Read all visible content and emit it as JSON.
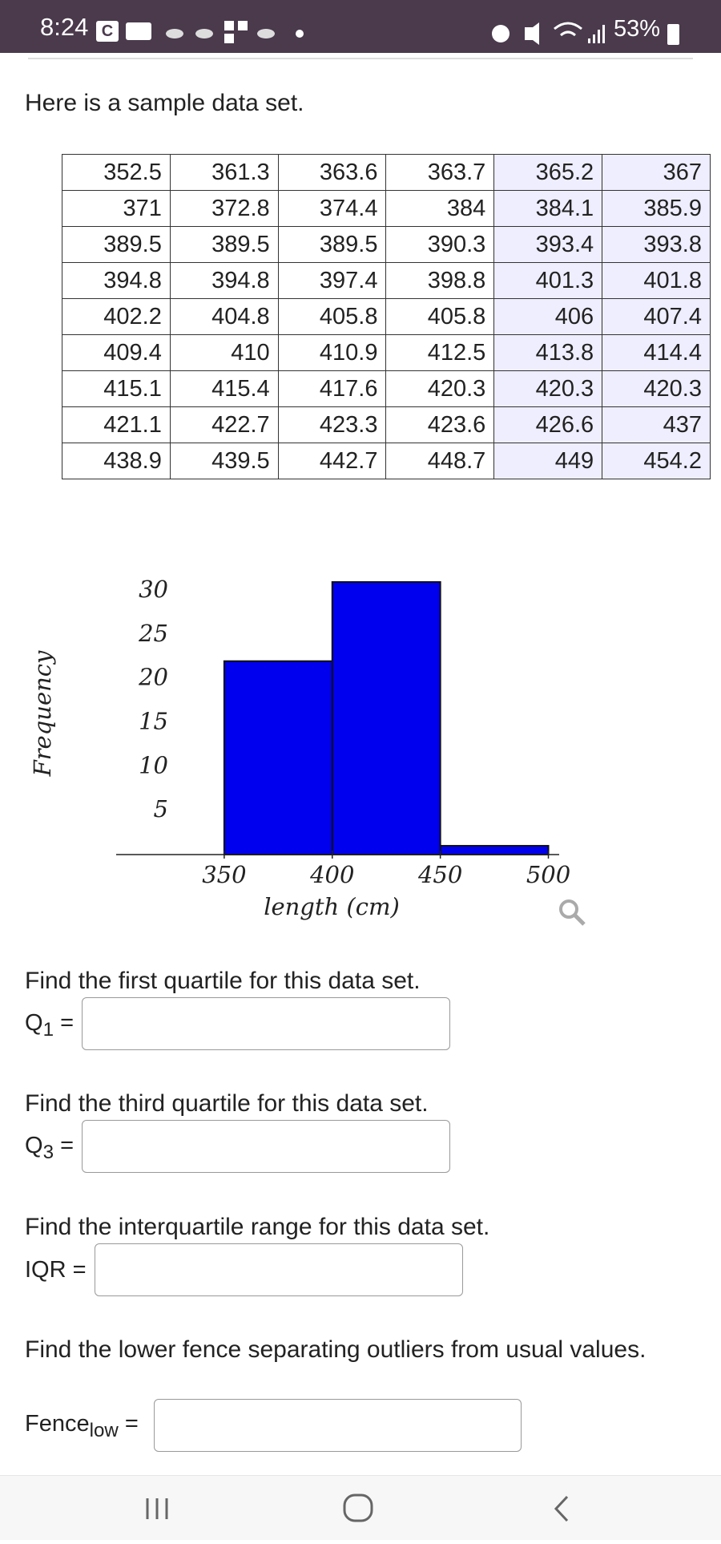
{
  "status_bar": {
    "time": "8:24",
    "icon_letter": "C",
    "battery": "53%"
  },
  "intro": "Here is a sample data set.",
  "table": {
    "rows": [
      [
        352.5,
        361.3,
        363.6,
        363.7,
        365.2,
        367
      ],
      [
        371,
        372.8,
        374.4,
        384,
        384.1,
        385.9
      ],
      [
        389.5,
        389.5,
        389.5,
        390.3,
        393.4,
        393.8
      ],
      [
        394.8,
        394.8,
        397.4,
        398.8,
        401.3,
        401.8
      ],
      [
        402.2,
        404.8,
        405.8,
        405.8,
        406,
        407.4
      ],
      [
        409.4,
        410,
        410.9,
        412.5,
        413.8,
        414.4
      ],
      [
        415.1,
        415.4,
        417.6,
        420.3,
        420.3,
        420.3
      ],
      [
        421.1,
        422.7,
        423.3,
        423.6,
        426.6,
        437
      ],
      [
        438.9,
        439.5,
        442.7,
        448.7,
        449,
        454.2
      ]
    ]
  },
  "chart_data": {
    "type": "histogram",
    "bins": [
      350,
      400,
      450,
      500
    ],
    "values": [
      22,
      31,
      1
    ],
    "color": "#0000ee",
    "xlabel": "length (cm)",
    "ylabel": "Frequency",
    "xlim": [
      300,
      505
    ],
    "ylim": [
      0,
      31
    ],
    "xticks": [
      350,
      400,
      450,
      500
    ],
    "yticks": [
      5,
      10,
      15,
      20,
      25,
      30
    ]
  },
  "questions": [
    {
      "prompt": "Find the first quartile for this data set.",
      "label": {
        "main": "Q",
        "sub": "1",
        "eq": "="
      }
    },
    {
      "prompt": "Find the third quartile for this data set.",
      "label": {
        "main": "Q",
        "sub": "3",
        "eq": "="
      }
    },
    {
      "prompt": "Find the interquartile range for this data set.",
      "label": {
        "main": "IQR",
        "eq": "="
      }
    },
    {
      "prompt": "Find the lower fence separating outliers from usual values.",
      "label": {
        "main": "Fence",
        "sub": "low",
        "eq": "="
      }
    }
  ]
}
